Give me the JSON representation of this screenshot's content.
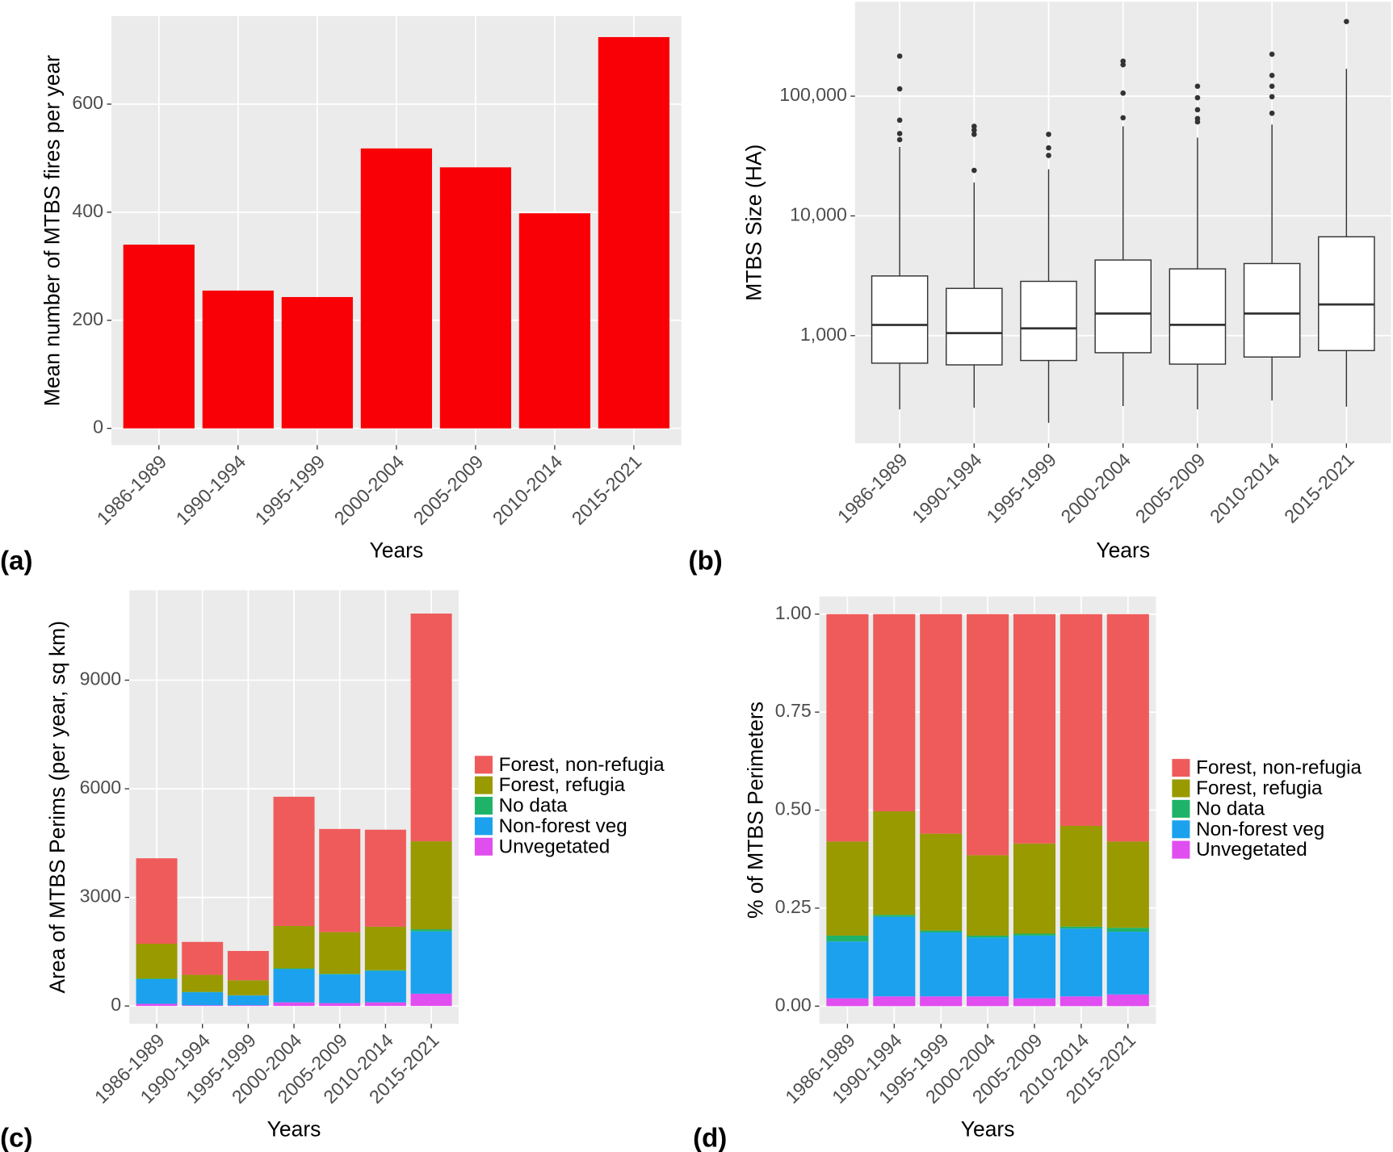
{
  "chart_data": [
    {
      "type": "bar",
      "panel_label": "(a)",
      "x_label": "Years",
      "y_label": "Mean number of MTBS fires per year",
      "categories": [
        "1986-1989",
        "1990-1994",
        "1995-1999",
        "2000-2004",
        "2005-2009",
        "2010-2014",
        "2015-2021"
      ],
      "values": [
        340,
        255,
        243,
        518,
        483,
        398,
        724
      ],
      "color": "#f90006",
      "ylim": [
        -31,
        763
      ],
      "yticks": [
        0,
        200,
        400,
        600
      ],
      "grid": true
    },
    {
      "type": "box",
      "panel_label": "(b)",
      "x_label": "Years",
      "y_label": "MTBS Size (HA)",
      "categories": [
        "1986-1989",
        "1990-1994",
        "1995-1999",
        "2000-2004",
        "2005-2009",
        "2010-2014",
        "2015-2021"
      ],
      "whisker_low": [
        242,
        250,
        187,
        258,
        242,
        287,
        255
      ],
      "q1": [
        589,
        570,
        620,
        720,
        578,
        663,
        750
      ],
      "median": [
        1228,
        1050,
        1150,
        1530,
        1230,
        1530,
        1820
      ],
      "q3": [
        3150,
        2480,
        2840,
        4280,
        3610,
        4000,
        6690
      ],
      "whisker_high": [
        37700,
        19000,
        24500,
        56000,
        45000,
        58000,
        169000
      ],
      "outliers": [
        [
          216000,
          115000,
          63000,
          48700,
          43300
        ],
        [
          24000,
          48000,
          52000,
          56000
        ],
        [
          32000,
          37000,
          48000
        ],
        [
          66000,
          106000,
          183000,
          196000
        ],
        [
          61000,
          65000,
          77000,
          97000,
          121000
        ],
        [
          72000,
          99000,
          121000,
          149000,
          224000
        ],
        [
          420000
        ]
      ],
      "log_scale": true,
      "ylim": [
        126,
        614000
      ],
      "yticks": [
        {
          "value": 1000,
          "label": "1,000"
        },
        {
          "value": 10000,
          "label": "10,000"
        },
        {
          "value": 100000,
          "label": "100,000"
        }
      ],
      "grid": true
    },
    {
      "type": "stacked_bar",
      "panel_label": "(c)",
      "x_label": "Years",
      "y_label": "Area of MTBS Perims (per year, sq km)",
      "categories": [
        "1986-1989",
        "1990-1994",
        "1995-1999",
        "2000-2004",
        "2005-2009",
        "2010-2014",
        "2015-2021"
      ],
      "series": [
        {
          "name": "Forest, non-refugia",
          "color": "#ef5b5b",
          "values": [
            2360,
            910,
            810,
            3570,
            2850,
            2680,
            6290
          ]
        },
        {
          "name": "Forest, refugia",
          "color": "#999900",
          "values": [
            960,
            470,
            415,
            1170,
            1150,
            1200,
            2430
          ]
        },
        {
          "name": "No data",
          "color": "#1fb36a",
          "values": [
            20,
            10,
            5,
            20,
            20,
            20,
            60
          ]
        },
        {
          "name": "Non-forest veg",
          "color": "#1ba1ee",
          "values": [
            680,
            360,
            270,
            920,
            790,
            870,
            1720
          ]
        },
        {
          "name": "Unvegetated",
          "color": "#e14ef0",
          "values": [
            60,
            20,
            20,
            100,
            80,
            100,
            340
          ]
        }
      ],
      "ylim": [
        -492,
        11484
      ],
      "yticks": [
        0,
        3000,
        6000,
        9000
      ],
      "grid": true
    },
    {
      "type": "stacked_bar",
      "panel_label": "(d)",
      "x_label": "Years",
      "y_label": "% of MTBS Perimeters",
      "categories": [
        "1986-1989",
        "1990-1994",
        "1995-1999",
        "2000-2004",
        "2005-2009",
        "2010-2014",
        "2015-2021"
      ],
      "series": [
        {
          "name": "Forest, non-refugia",
          "color": "#ef5b5b",
          "values": [
            0.58,
            0.503,
            0.56,
            0.615,
            0.585,
            0.54,
            0.58
          ]
        },
        {
          "name": "Forest, refugia",
          "color": "#999900",
          "values": [
            0.24,
            0.264,
            0.247,
            0.205,
            0.23,
            0.257,
            0.22
          ]
        },
        {
          "name": "No data",
          "color": "#1fb36a",
          "values": [
            0.015,
            0.005,
            0.005,
            0.005,
            0.005,
            0.005,
            0.01
          ]
        },
        {
          "name": "Non-forest veg",
          "color": "#1ba1ee",
          "values": [
            0.145,
            0.203,
            0.163,
            0.15,
            0.16,
            0.173,
            0.16
          ]
        },
        {
          "name": "Unvegetated",
          "color": "#e14ef0",
          "values": [
            0.02,
            0.025,
            0.025,
            0.025,
            0.02,
            0.025,
            0.03
          ]
        }
      ],
      "ylim": [
        -0.045,
        1.045
      ],
      "yticks": [
        {
          "value": 0,
          "label": "0.00"
        },
        {
          "value": 0.25,
          "label": "0.25"
        },
        {
          "value": 0.5,
          "label": "0.50"
        },
        {
          "value": 0.75,
          "label": "0.75"
        },
        {
          "value": 1,
          "label": "1.00"
        }
      ],
      "grid": true
    }
  ]
}
